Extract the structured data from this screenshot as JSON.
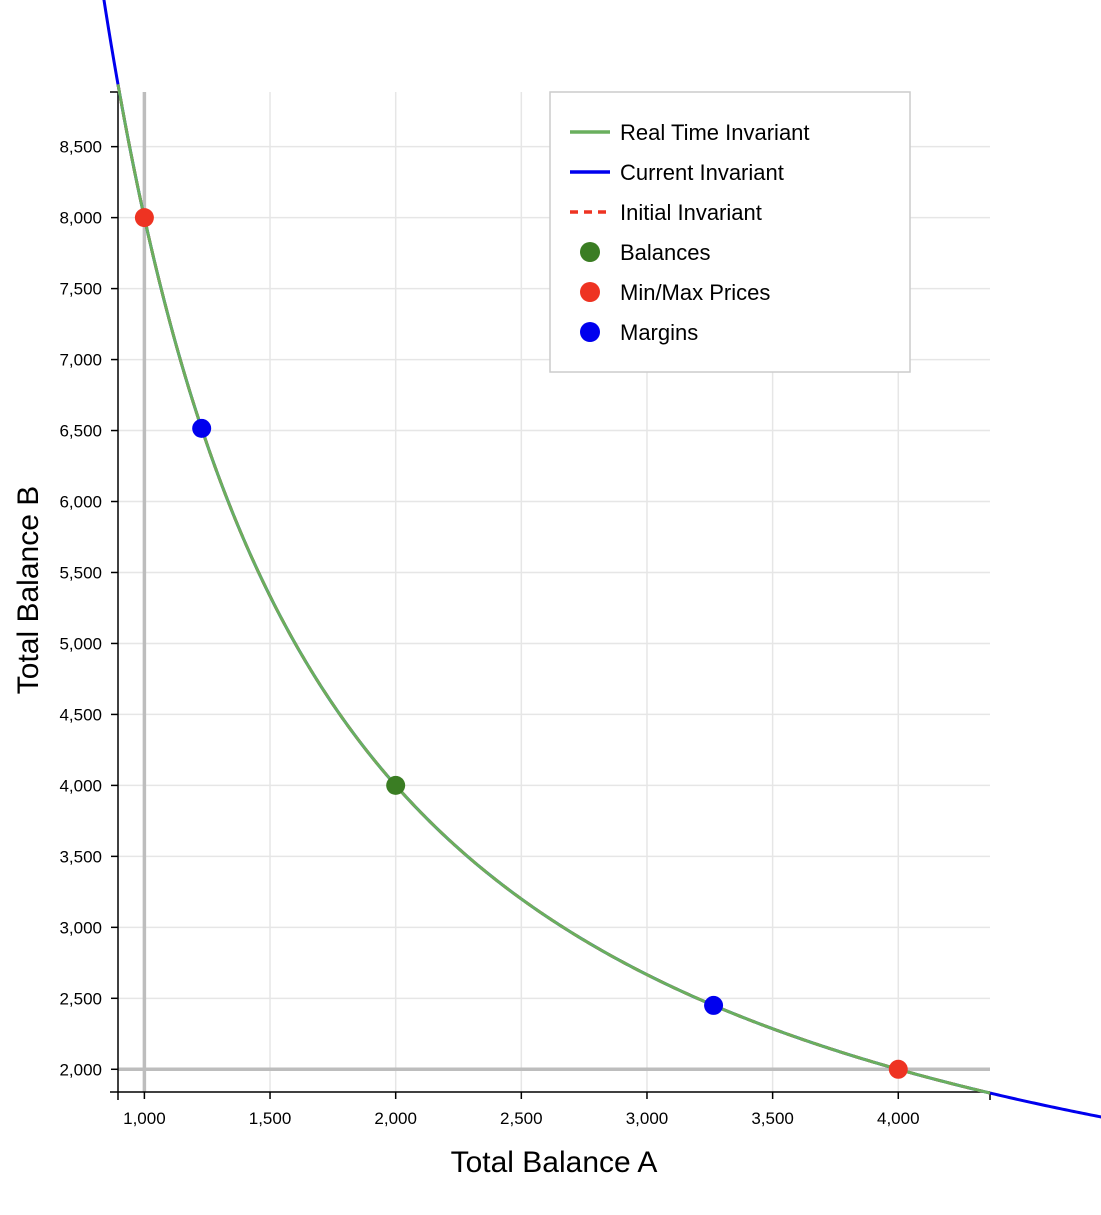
{
  "chart_data": {
    "type": "line",
    "xlabel": "Total Balance A",
    "ylabel": "Total Balance B",
    "xlim": [
      895,
      4365
    ],
    "ylim": [
      1840,
      8885
    ],
    "x_ticks": [
      1000,
      1500,
      2000,
      2500,
      3000,
      3500,
      4000
    ],
    "x_tick_labels": [
      "1,000",
      "1,500",
      "2,000",
      "2,500",
      "3,000",
      "3,500",
      "4,000"
    ],
    "y_ticks": [
      2000,
      2500,
      3000,
      3500,
      4000,
      4500,
      5000,
      5500,
      6000,
      6500,
      7000,
      7500,
      8000,
      8500
    ],
    "y_tick_labels": [
      "2,000",
      "2,500",
      "3,000",
      "3,500",
      "4,000",
      "4,500",
      "5,000",
      "5,500",
      "6,000",
      "6,500",
      "7,000",
      "7,500",
      "8,000",
      "8,500"
    ],
    "grid": true,
    "legend_position": "top-right",
    "invariant": 8000000,
    "reference_lines": {
      "x": 1000,
      "y": 2000
    },
    "series": [
      {
        "name": "Real Time Invariant",
        "kind": "line",
        "color": "#6aaf5e",
        "x_range": [
          895,
          4365
        ]
      },
      {
        "name": "Current Invariant",
        "kind": "line",
        "color": "#0000ee",
        "x_range": [
          745,
          5225
        ]
      },
      {
        "name": "Initial Invariant",
        "kind": "dashed-line",
        "color": "#ee3322",
        "x_range": [
          895,
          4365
        ]
      },
      {
        "name": "Balances",
        "kind": "points",
        "color": "#3a7d23",
        "points": [
          [
            2000,
            4000
          ]
        ]
      },
      {
        "name": "Min/Max Prices",
        "kind": "points",
        "color": "#ee3322",
        "points": [
          [
            1000,
            8000
          ],
          [
            4000,
            2000
          ]
        ]
      },
      {
        "name": "Margins",
        "kind": "points",
        "color": "#0000ee",
        "points": [
          [
            1228,
            6515
          ],
          [
            3265,
            2450
          ]
        ]
      }
    ]
  }
}
